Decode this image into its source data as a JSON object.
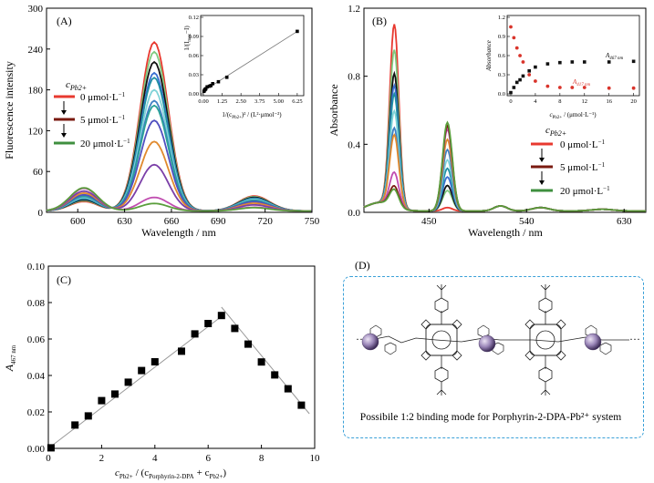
{
  "panel_a": {
    "tag": "(A)",
    "chart_data": {
      "type": "line",
      "xlabel": "Wavelength / nm",
      "ylabel": "Fluorescence intensity",
      "xlim": [
        580,
        750
      ],
      "ylim": [
        0,
        300
      ],
      "x_ticks": [
        600,
        630,
        660,
        690,
        720,
        750
      ],
      "y_ticks": [
        0,
        60,
        120,
        180,
        240,
        300
      ],
      "peak_intensities": [
        248,
        234,
        219,
        203,
        196,
        178,
        162,
        155,
        133,
        102,
        68,
        20,
        11
      ],
      "series_colors": [
        "#e8392f",
        "#7fc97f",
        "#111111",
        "#3a6fd1",
        "#1f8fa3",
        "#7fd3d8",
        "#3f80c4",
        "#2aa198",
        "#4f4fc0",
        "#e08a2e",
        "#7b3fa8",
        "#c04db0",
        "#5a9e3c"
      ],
      "legend_title": "c",
      "legend_title_sub": "Pb2+",
      "legend": [
        {
          "label": "0 μmol·L",
          "sup": "−1",
          "color": "#e8392f"
        },
        {
          "label": "5 μmol·L",
          "sup": "−1",
          "color": "#7a1a10"
        },
        {
          "label": "20 μmol·L",
          "sup": "−1",
          "color": "#3f8f3f"
        }
      ],
      "inset": {
        "type": "scatter",
        "xlabel": "1/(c",
        "xlabel_sub": "Pb2+",
        "xlabel_tail": ")² / (L²·μmol⁻²)",
        "ylabel": "1/(I",
        "ylabel_sub": "max",
        "ylabel_tail": "−I)",
        "xlim": [
          0,
          6.5
        ],
        "ylim": [
          0,
          0.12
        ],
        "x_ticks": [
          0.0,
          1.25,
          2.5,
          3.75,
          5.0,
          6.25
        ],
        "x_tick_labels": [
          "0.00",
          "1.25",
          "2.50",
          "3.75",
          "5.00",
          "6.25"
        ],
        "y_ticks": [
          0.0,
          0.03,
          0.06,
          0.09,
          0.12
        ],
        "y_tick_labels": [
          "0.00",
          "0.03",
          "0.06",
          "0.09",
          "0.12"
        ],
        "x": [
          0.04,
          0.08,
          0.12,
          0.16,
          0.25,
          0.4,
          0.5,
          0.62,
          1.0,
          1.56,
          6.25
        ],
        "y": [
          0.004,
          0.006,
          0.007,
          0.008,
          0.011,
          0.012,
          0.013,
          0.016,
          0.019,
          0.026,
          0.098
        ]
      }
    }
  },
  "panel_b": {
    "tag": "(B)",
    "chart_data": {
      "type": "line",
      "xlabel": "Wavelength / nm",
      "ylabel": "Absorbance",
      "xlim": [
        390,
        650
      ],
      "ylim": [
        0,
        1.2
      ],
      "x_ticks": [
        450,
        540,
        630
      ],
      "y_ticks": [
        0.0,
        0.4,
        0.8,
        1.2
      ],
      "y_tick_labels": [
        "0.0",
        "0.4",
        "0.8",
        "1.2"
      ],
      "soret_heights": [
        1.07,
        0.92,
        0.78,
        0.71,
        0.66,
        0.56,
        0.46,
        0.42,
        0.2,
        0.12,
        0.1
      ],
      "band467_heights": [
        0.02,
        0.12,
        0.15,
        0.2,
        0.25,
        0.3,
        0.36,
        0.42,
        0.48,
        0.5,
        0.52
      ],
      "series_colors": [
        "#e8392f",
        "#7fc97f",
        "#111111",
        "#3a6fd1",
        "#1f8fa3",
        "#7fd3d8",
        "#3f80c4",
        "#e08a2e",
        "#c04db0",
        "#7a1a10",
        "#5a9e3c"
      ],
      "legend_title": "c",
      "legend_title_sub": "Pb2+",
      "legend": [
        {
          "label": "0 μmol·L",
          "sup": "−1",
          "color": "#e8392f"
        },
        {
          "label": "5 μmol·L",
          "sup": "−1",
          "color": "#7a1a10"
        },
        {
          "label": "20 μmol·L",
          "sup": "−1",
          "color": "#3f8f3f"
        }
      ],
      "inset": {
        "type": "scatter",
        "xlabel": "c",
        "xlabel_sub": "Pb2+",
        "xlabel_tail": "/ (μmol·L⁻¹)",
        "ylabel": "Absorbance",
        "xlim": [
          0,
          20.5
        ],
        "ylim": [
          0,
          1.2
        ],
        "x_ticks": [
          0,
          4,
          8,
          12,
          16,
          20
        ],
        "y_ticks": [
          0.0,
          0.3,
          0.6,
          0.9,
          1.2
        ],
        "y_tick_labels": [
          "0.0",
          "0.3",
          "0.6",
          "0.9",
          "1.2"
        ],
        "series": [
          {
            "name": "A",
            "name_sub": "467 nm",
            "color": "#111111",
            "x": [
              0,
              0.5,
              1,
              1.5,
              2,
              3,
              4,
              6,
              8,
              10,
              12,
              16,
              20
            ],
            "y": [
              0.02,
              0.1,
              0.18,
              0.22,
              0.28,
              0.36,
              0.42,
              0.47,
              0.49,
              0.5,
              0.5,
              0.5,
              0.51
            ]
          },
          {
            "name": "A",
            "name_sub": "417 nm",
            "color": "#d9342b",
            "x": [
              0,
              0.5,
              1,
              1.5,
              2,
              3,
              4,
              6,
              8,
              10,
              12,
              16,
              20
            ],
            "y": [
              1.05,
              0.88,
              0.72,
              0.6,
              0.5,
              0.3,
              0.2,
              0.12,
              0.1,
              0.1,
              0.1,
              0.09,
              0.09
            ]
          }
        ]
      }
    }
  },
  "panel_c": {
    "tag": "(C)",
    "chart_data": {
      "type": "scatter",
      "xlabel": "c",
      "xlabel_sub": "Pb2+",
      "xlabel_mid": "/ (c",
      "xlabel_sub2": "Porphyrin-2-DPA",
      "xlabel_mid2": "+ c",
      "xlabel_sub3": "Pb2+",
      "xlabel_tail": ")",
      "ylabel": "A",
      "ylabel_sub": "467 nm",
      "xlim": [
        0,
        10
      ],
      "ylim": [
        0,
        0.1
      ],
      "x_ticks": [
        0,
        2,
        4,
        6,
        8,
        10
      ],
      "y_ticks": [
        0.0,
        0.02,
        0.04,
        0.06,
        0.08,
        0.1
      ],
      "y_tick_labels": [
        "0.00",
        "0.02",
        "0.04",
        "0.06",
        "0.08",
        "0.10"
      ],
      "x": [
        0.1,
        1.0,
        1.5,
        2.0,
        2.5,
        3.0,
        3.5,
        4.0,
        5.0,
        5.5,
        6.0,
        6.5,
        7.0,
        7.5,
        8.0,
        8.5,
        9.0,
        9.5
      ],
      "y": [
        0.0003,
        0.0128,
        0.0178,
        0.0262,
        0.0298,
        0.0363,
        0.0427,
        0.0475,
        0.0533,
        0.0628,
        0.0685,
        0.0729,
        0.0658,
        0.0572,
        0.0474,
        0.0403,
        0.0327,
        0.0237
      ],
      "fit_lines": [
        {
          "x": [
            0,
            6.6
          ],
          "y": [
            0.0,
            0.0735
          ]
        },
        {
          "x": [
            6.5,
            9.8
          ],
          "y": [
            0.0775,
            0.019
          ]
        }
      ]
    }
  },
  "panel_d": {
    "tag": "(D)",
    "caption": "Possibile 1:2 binding mode for Porphyrin-2-DPA-Pb²⁺ system"
  }
}
